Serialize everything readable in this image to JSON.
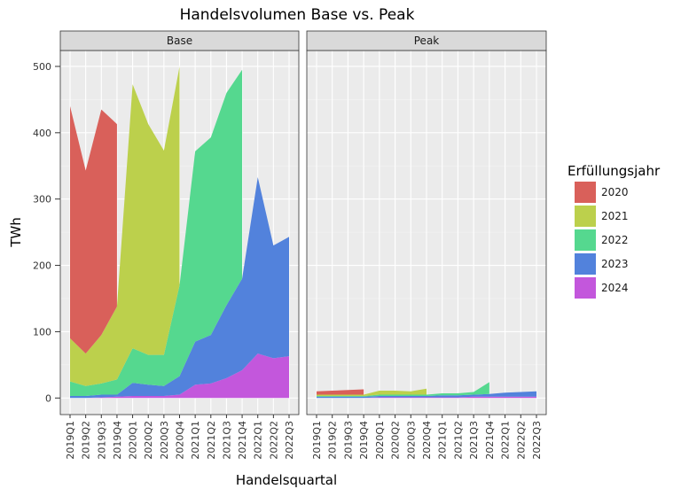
{
  "chart_data": {
    "type": "area",
    "title": "Handelsvolumen Base vs. Peak",
    "x_label": "Handelsquartal",
    "y_label": "TWh",
    "legend_title": "Erfüllungsjahr",
    "categories": [
      "2019Q1",
      "2019Q2",
      "2019Q3",
      "2019Q4",
      "2020Q1",
      "2020Q2",
      "2020Q3",
      "2020Q4",
      "2021Q1",
      "2021Q2",
      "2021Q3",
      "2021Q4",
      "2022Q1",
      "2022Q2",
      "2022Q3"
    ],
    "ylim": [
      -25,
      524
    ],
    "yticks": [
      0,
      100,
      200,
      300,
      400,
      500
    ],
    "grid": true,
    "series": [
      {
        "name": "2020",
        "color": "#d9605a"
      },
      {
        "name": "2021",
        "color": "#bcd04c"
      },
      {
        "name": "2022",
        "color": "#55d88f"
      },
      {
        "name": "2023",
        "color": "#5282dc"
      },
      {
        "name": "2024",
        "color": "#c357dc"
      }
    ],
    "panels": [
      {
        "name": "Base",
        "values": [
          [
            350,
            276,
            340,
            275,
            null,
            null,
            null,
            null,
            null,
            null,
            null,
            null,
            null,
            null,
            null
          ],
          [
            65,
            49,
            73,
            110,
            398,
            348,
            308,
            330,
            null,
            null,
            null,
            null,
            null,
            null,
            null
          ],
          [
            22,
            15,
            17,
            23,
            52,
            45,
            47,
            137,
            287,
            298,
            320,
            315,
            null,
            null,
            null
          ],
          [
            3,
            3,
            4,
            3,
            20,
            17,
            15,
            28,
            65,
            73,
            110,
            138,
            266,
            170,
            180
          ],
          [
            0,
            0,
            1,
            2,
            3,
            3,
            3,
            5,
            20,
            22,
            30,
            42,
            67,
            60,
            63
          ]
        ]
      },
      {
        "name": "Peak",
        "values": [
          [
            5,
            6,
            7,
            8,
            null,
            null,
            null,
            null,
            null,
            null,
            null,
            null,
            null,
            null,
            null
          ],
          [
            2,
            2,
            2,
            2,
            6,
            6,
            5,
            9,
            null,
            null,
            null,
            null,
            null,
            null,
            null
          ],
          [
            1,
            1,
            1,
            1,
            2,
            2,
            2,
            2,
            3,
            3,
            4,
            18,
            null,
            null,
            null
          ],
          [
            2,
            2,
            2,
            2,
            2,
            2,
            2,
            2,
            3,
            3,
            3,
            4,
            6,
            7,
            8
          ],
          [
            0,
            0,
            0,
            0,
            1,
            1,
            1,
            1,
            1,
            1,
            2,
            2,
            2,
            2,
            2
          ]
        ]
      }
    ]
  }
}
